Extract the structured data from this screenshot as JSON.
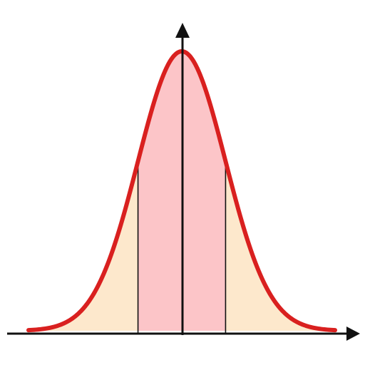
{
  "chart_data": {
    "type": "area",
    "title": "",
    "xlabel": "",
    "ylabel": "",
    "distribution": "normal",
    "mean": 0,
    "sd": 1,
    "xlim": [
      -3.5,
      3.5
    ],
    "ylim": [
      0,
      0.4
    ],
    "grid": false,
    "regions": [
      {
        "from": -3.5,
        "to": -1,
        "color": "#fde8cc"
      },
      {
        "from": -1,
        "to": 1,
        "color": "#fcc5c8"
      },
      {
        "from": 1,
        "to": 3.5,
        "color": "#fde8cc"
      }
    ],
    "markers": [
      -1,
      1
    ],
    "colors": {
      "curve": "#d9201f",
      "axis": "#111111",
      "marker": "#111111"
    }
  }
}
